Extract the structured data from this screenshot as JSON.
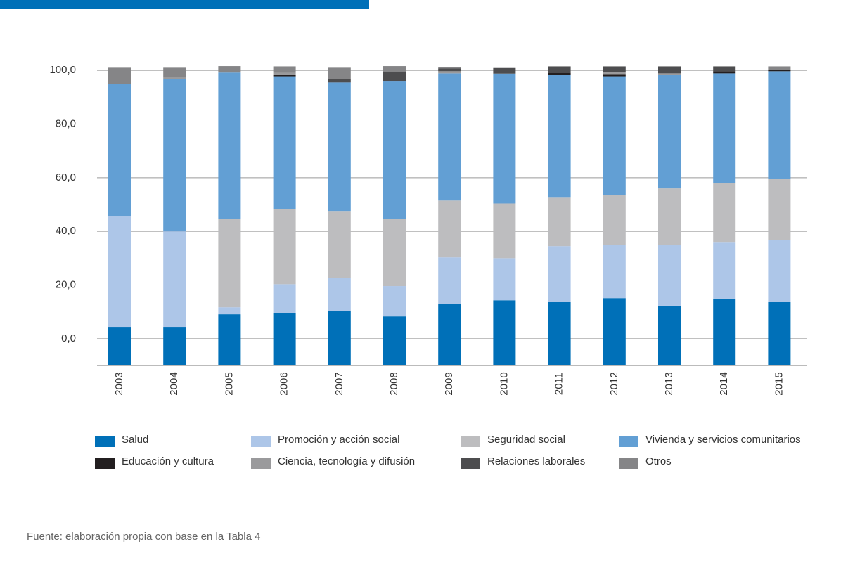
{
  "chart_data": {
    "type": "stacked_bar",
    "categories": [
      "2003",
      "2004",
      "2005",
      "2006",
      "2007",
      "2008",
      "2009",
      "2010",
      "2011",
      "2012",
      "2013",
      "2014",
      "2015"
    ],
    "series": [
      {
        "name": "Salud",
        "color": "#0070b8",
        "values": [
          14.4,
          14.4,
          19.1,
          19.6,
          20.2,
          18.3,
          22.8,
          24.3,
          23.8,
          25.1,
          22.3,
          24.9,
          23.8
        ]
      },
      {
        "name": "Promoción y acción social",
        "color": "#adc6e8",
        "values": [
          41.4,
          35.6,
          2.6,
          10.7,
          12.3,
          11.3,
          17.5,
          15.7,
          20.7,
          19.9,
          22.5,
          20.9,
          23.0
        ]
      },
      {
        "name": "Seguridad social",
        "color": "#bdbdbf",
        "values": [
          0,
          0,
          33.0,
          28.0,
          25.1,
          24.9,
          21.2,
          20.4,
          18.3,
          18.6,
          21.2,
          22.3,
          22.8
        ]
      },
      {
        "name": "Vivienda y servicios comunitarios",
        "color": "#629fd4",
        "values": [
          49.2,
          56.8,
          54.5,
          49.5,
          47.9,
          51.6,
          47.4,
          48.4,
          45.5,
          44.2,
          42.4,
          40.8,
          40.1
        ]
      },
      {
        "name": "Educación y cultura",
        "color": "#231f20",
        "values": [
          0,
          0,
          0,
          0.5,
          0,
          0,
          0,
          0,
          0.8,
          0.8,
          0,
          0.8,
          0.5
        ]
      },
      {
        "name": "Ciencia, tecnología y difusión",
        "color": "#9a9a9c",
        "values": [
          0,
          0.8,
          0,
          0.8,
          0,
          0,
          0.8,
          0,
          0,
          0.8,
          0.5,
          0,
          0
        ]
      },
      {
        "name": "Relaciones laborales",
        "color": "#4d4d4f",
        "values": [
          0,
          0,
          0,
          0,
          1.3,
          3.4,
          1.0,
          2.1,
          2.4,
          2.1,
          2.6,
          1.8,
          0
        ]
      },
      {
        "name": "Otros",
        "color": "#858587",
        "values": [
          6.0,
          3.4,
          2.4,
          2.4,
          4.2,
          2.1,
          0.5,
          0,
          0,
          0,
          0,
          0,
          1.3
        ]
      }
    ],
    "ylim": [
      -10,
      110
    ],
    "yticks": [
      {
        "value": 0,
        "label": "0,0"
      },
      {
        "value": 20,
        "label": "20,0"
      },
      {
        "value": 40,
        "label": "40,0"
      },
      {
        "value": 60,
        "label": "60,0"
      },
      {
        "value": 80,
        "label": "80,0"
      },
      {
        "value": 100,
        "label": "100,0"
      }
    ],
    "grid": true,
    "source": "Fuente: elaboración propia con base en la Tabla 4"
  }
}
